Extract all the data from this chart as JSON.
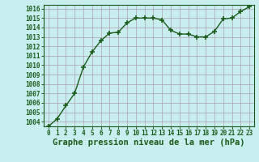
{
  "x": [
    0,
    1,
    2,
    3,
    4,
    5,
    6,
    7,
    8,
    9,
    10,
    11,
    12,
    13,
    14,
    15,
    16,
    17,
    18,
    19,
    20,
    21,
    22,
    23
  ],
  "y": [
    1003.5,
    1004.3,
    1005.7,
    1007.0,
    1009.8,
    1011.4,
    1012.6,
    1013.4,
    1013.5,
    1014.5,
    1015.0,
    1015.0,
    1015.0,
    1014.8,
    1013.7,
    1013.3,
    1013.3,
    1013.0,
    1013.0,
    1013.6,
    1014.9,
    1015.0,
    1015.7,
    1016.2
  ],
  "ylim_min": 1003.5,
  "ylim_max": 1016.4,
  "xlim_min": -0.5,
  "xlim_max": 23.5,
  "yticks": [
    1004,
    1005,
    1006,
    1007,
    1008,
    1009,
    1010,
    1011,
    1012,
    1013,
    1014,
    1015,
    1016
  ],
  "xticks": [
    0,
    1,
    2,
    3,
    4,
    5,
    6,
    7,
    8,
    9,
    10,
    11,
    12,
    13,
    14,
    15,
    16,
    17,
    18,
    19,
    20,
    21,
    22,
    23
  ],
  "line_color": "#1a5c1a",
  "marker": "+",
  "marker_size": 5,
  "marker_linewidth": 1.2,
  "bg_color": "#c8eef0",
  "grid_color": "#b0a0b0",
  "xlabel": "Graphe pression niveau de la mer (hPa)",
  "xlabel_color": "#1a5c1a",
  "tick_color": "#1a5c1a",
  "tick_fontsize": 5.5,
  "xlabel_fontsize": 7.5,
  "line_width": 1.0,
  "spine_color": "#1a5c1a"
}
